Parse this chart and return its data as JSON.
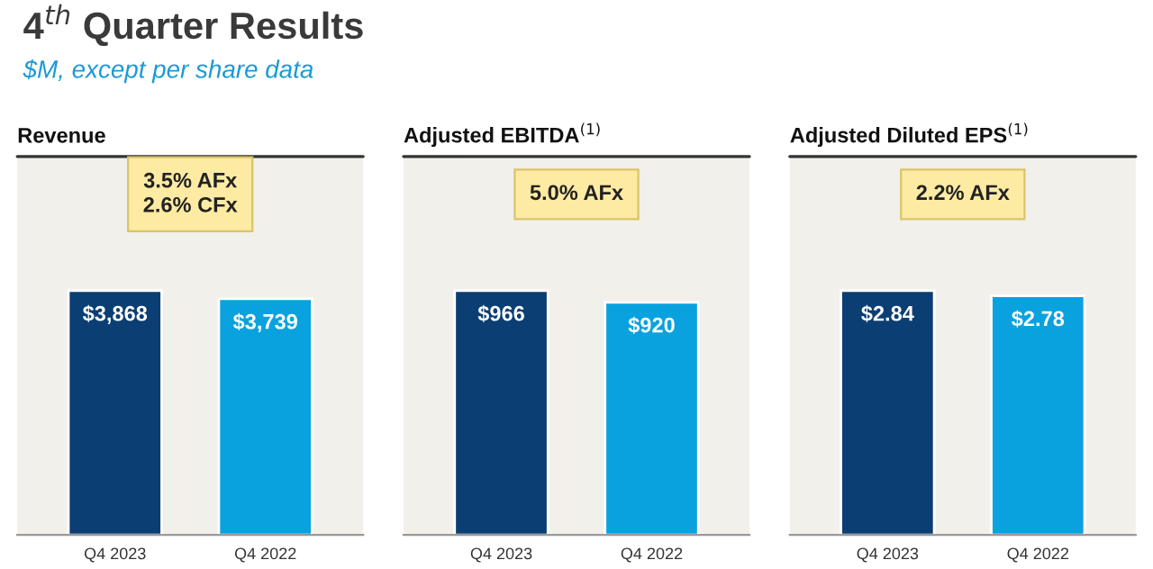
{
  "chart_data": [
    {
      "type": "other",
      "title": "4$^{th}$ Quarter Results",
      "subtitle": "$M, except per share data"
    },
    {
      "type": "bar",
      "title": "Revenue",
      "categories": [
        "Q4 2023",
        "Q4 2022"
      ],
      "values": [
        3868,
        3739
      ],
      "colors": [
        "#0b3e72",
        "#0aa2de"
      ],
      "value_labels": [
        "$3,868",
        "$3,739"
      ],
      "annotations": [
        "3.5% AFx\n2.6% CFx"
      ]
    },
    {
      "type": "bar",
      "title": "Adjusted EBITDA$^{(1)}$",
      "categories": [
        "Q4 2023",
        "Q4 2022"
      ],
      "values": [
        966,
        920
      ],
      "colors": [
        "#0b3e72",
        "#0aa2de"
      ],
      "value_labels": [
        "$966",
        "$920"
      ],
      "annotations": [
        "5.0% AFx"
      ]
    },
    {
      "type": "bar",
      "title": "Adjusted Diluted EPS$^{(1)}$",
      "categories": [
        "Q4 2023",
        "Q4 2022"
      ],
      "values": [
        2.84,
        2.78
      ],
      "colors": [
        "#0b3e72",
        "#0aa2de"
      ],
      "value_labels": [
        "$2.84",
        "$2.78"
      ],
      "annotations": [
        "2.2% AFx"
      ]
    }
  ]
}
